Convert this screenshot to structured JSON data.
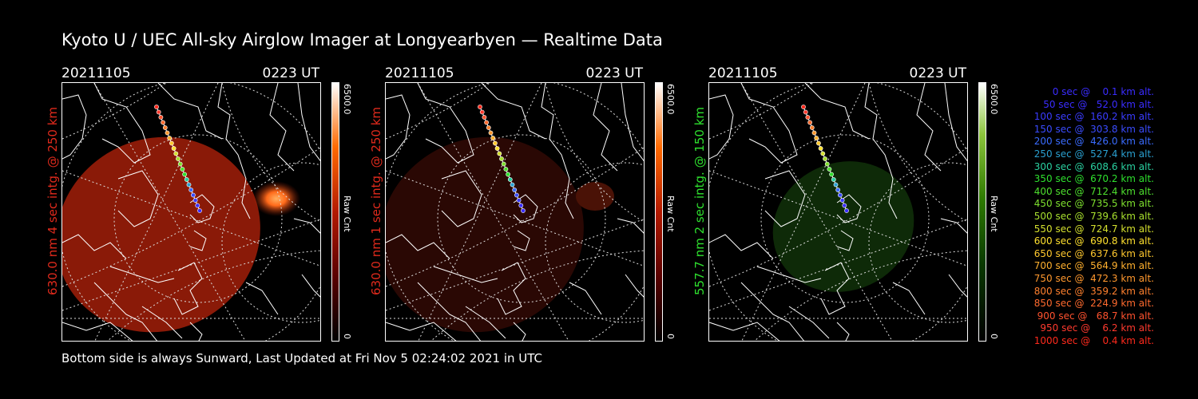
{
  "title": "Kyoto U / UEC All-sky Airglow Imager at Longyearbyen — Realtime Data",
  "footer": "Bottom side is always Sunward, Last Updated at Fri Nov  5 02:24:02 2021 in UTC",
  "colors": {
    "red_label": "#e02a1c",
    "green_label": "#2ee02e"
  },
  "panels": [
    {
      "date": "20211105",
      "time": "0223 UT",
      "channel_label": "630.0 nm 4 sec intg. @ 250 km",
      "label_color": "#e02a1c",
      "colorbar_max": "6500.0",
      "colorbar_unit": "Raw Cnt",
      "colorbar_min": "0",
      "colorbar_gradient": "linear-gradient(to top,#000 0%,#5a0000 25%,#b31a00 50%,#ff6a00 75%,#ffffff 100%)",
      "sky_color": "#8a1a08",
      "hotspot_color": "#ff7a1a"
    },
    {
      "date": "20211105",
      "time": "0223 UT",
      "channel_label": "630.0 nm 1 sec intg. @ 250 km",
      "label_color": "#e02a1c",
      "colorbar_max": "6500.0",
      "colorbar_unit": "Raw Cnt",
      "colorbar_min": "0",
      "colorbar_gradient": "linear-gradient(to top,#000 0%,#5a0000 25%,#b31a00 50%,#ff6a00 75%,#ffffff 100%)",
      "sky_color": "#2a0804",
      "hotspot_color": "#5a1608"
    },
    {
      "date": "20211105",
      "time": "0223 UT",
      "channel_label": "557.7 nm 2 sec intg. @ 150 km",
      "label_color": "#2ee02e",
      "colorbar_max": "6500.0",
      "colorbar_unit": "Raw Cnt",
      "colorbar_min": "0",
      "colorbar_gradient": "linear-gradient(to top,#000 0%,#0a3a00 30%,#2e7a00 55%,#8cc43c 80%,#ffffff 100%)",
      "sky_color": "#0e2a08",
      "hotspot_color": "#1a3e0c"
    }
  ],
  "legend": [
    {
      "text": "0 sec @    0.1 km alt.",
      "color": "#3a2cff"
    },
    {
      "text": "50 sec @   52.0 km alt.",
      "color": "#3a2cff"
    },
    {
      "text": "100 sec @  160.2 km alt.",
      "color": "#3a3cff"
    },
    {
      "text": "150 sec @  303.8 km alt.",
      "color": "#3a4cff"
    },
    {
      "text": "200 sec @  426.0 km alt.",
      "color": "#3a6cff"
    },
    {
      "text": "250 sec @  527.4 km alt.",
      "color": "#2aa0d0"
    },
    {
      "text": "300 sec @  608.6 km alt.",
      "color": "#2ad0a0"
    },
    {
      "text": "350 sec @  670.2 km alt.",
      "color": "#2ee02e"
    },
    {
      "text": "400 sec @  712.4 km alt.",
      "color": "#4ee02e"
    },
    {
      "text": "450 sec @  735.5 km alt.",
      "color": "#7ee02e"
    },
    {
      "text": "500 sec @  739.6 km alt.",
      "color": "#a8e02e"
    },
    {
      "text": "550 sec @  724.7 km alt.",
      "color": "#d4e02e"
    },
    {
      "text": "600 sec @  690.8 km alt.",
      "color": "#ffe02e"
    },
    {
      "text": "650 sec @  637.6 km alt.",
      "color": "#ffc82e"
    },
    {
      "text": "700 sec @  564.9 km alt.",
      "color": "#ffb02e"
    },
    {
      "text": "750 sec @  472.3 km alt.",
      "color": "#ff982e"
    },
    {
      "text": "800 sec @  359.2 km alt.",
      "color": "#ff802e"
    },
    {
      "text": "850 sec @  224.9 km alt.",
      "color": "#ff6a2e"
    },
    {
      "text": "900 sec @   68.7 km alt.",
      "color": "#ff522e"
    },
    {
      "text": "950 sec @    6.2 km alt.",
      "color": "#ff3a2e"
    },
    {
      "text": "1000 sec @    0.4 km alt.",
      "color": "#ff2a1c"
    }
  ]
}
